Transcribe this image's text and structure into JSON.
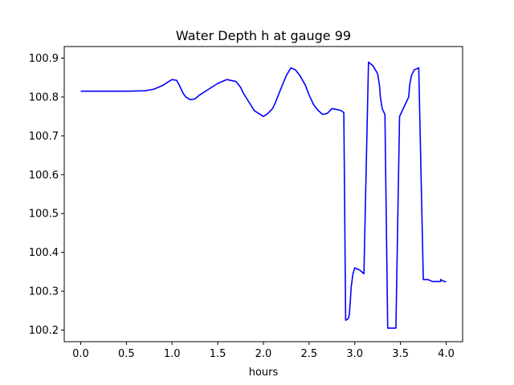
{
  "chart_data": {
    "type": "line",
    "title": "Water Depth h at gauge 99",
    "xlabel": "hours",
    "ylabel": "",
    "xlim": [
      -0.18,
      4.18
    ],
    "ylim": [
      100.17,
      100.93
    ],
    "grid": false,
    "x_ticks": [
      0.0,
      0.5,
      1.0,
      1.5,
      2.0,
      2.5,
      3.0,
      3.5,
      4.0
    ],
    "x_tick_labels": [
      "0.0",
      "0.5",
      "1.0",
      "1.5",
      "2.0",
      "2.5",
      "3.0",
      "3.5",
      "4.0"
    ],
    "y_ticks": [
      100.2,
      100.3,
      100.4,
      100.5,
      100.6,
      100.7,
      100.8,
      100.9
    ],
    "y_tick_labels": [
      "100.2",
      "100.3",
      "100.4",
      "100.5",
      "100.6",
      "100.7",
      "100.8",
      "100.9"
    ],
    "series": [
      {
        "name": "",
        "color": "#0000ff",
        "x": [
          0.0,
          0.5,
          0.7,
          0.8,
          0.9,
          0.95,
          1.0,
          1.05,
          1.08,
          1.12,
          1.15,
          1.2,
          1.25,
          1.3,
          1.4,
          1.5,
          1.6,
          1.7,
          1.75,
          1.78,
          1.82,
          1.9,
          2.0,
          2.05,
          2.1,
          2.13,
          2.18,
          2.25,
          2.3,
          2.35,
          2.4,
          2.46,
          2.5,
          2.55,
          2.6,
          2.65,
          2.7,
          2.75,
          2.8,
          2.85,
          2.88,
          2.9,
          2.93,
          2.94,
          2.95,
          2.96,
          2.98,
          3.0,
          3.05,
          3.1,
          3.15,
          3.2,
          3.25,
          3.27,
          3.28,
          3.3,
          3.33,
          3.36,
          3.4,
          3.45,
          3.49,
          3.5,
          3.52,
          3.55,
          3.59,
          3.6,
          3.62,
          3.65,
          3.7,
          3.75,
          3.8,
          3.85,
          3.9,
          3.94,
          3.94,
          3.98,
          4.0
        ],
        "y": [
          100.815,
          100.815,
          100.816,
          100.82,
          100.83,
          100.838,
          100.845,
          100.843,
          100.83,
          100.81,
          100.8,
          100.793,
          100.795,
          100.805,
          100.82,
          100.835,
          100.845,
          100.84,
          100.825,
          100.81,
          100.795,
          100.765,
          100.75,
          100.758,
          100.77,
          100.785,
          100.815,
          100.855,
          100.875,
          100.87,
          100.855,
          100.83,
          100.805,
          100.78,
          100.765,
          100.755,
          100.758,
          100.77,
          100.768,
          100.765,
          100.76,
          100.225,
          100.23,
          100.24,
          100.27,
          100.31,
          100.345,
          100.36,
          100.355,
          100.345,
          100.89,
          100.88,
          100.86,
          100.83,
          100.8,
          100.77,
          100.755,
          100.205,
          100.205,
          100.205,
          100.75,
          100.755,
          100.765,
          100.78,
          100.8,
          100.83,
          100.855,
          100.87,
          100.875,
          100.33,
          100.33,
          100.325,
          100.325,
          100.325,
          100.33,
          100.325,
          100.325
        ]
      }
    ]
  }
}
